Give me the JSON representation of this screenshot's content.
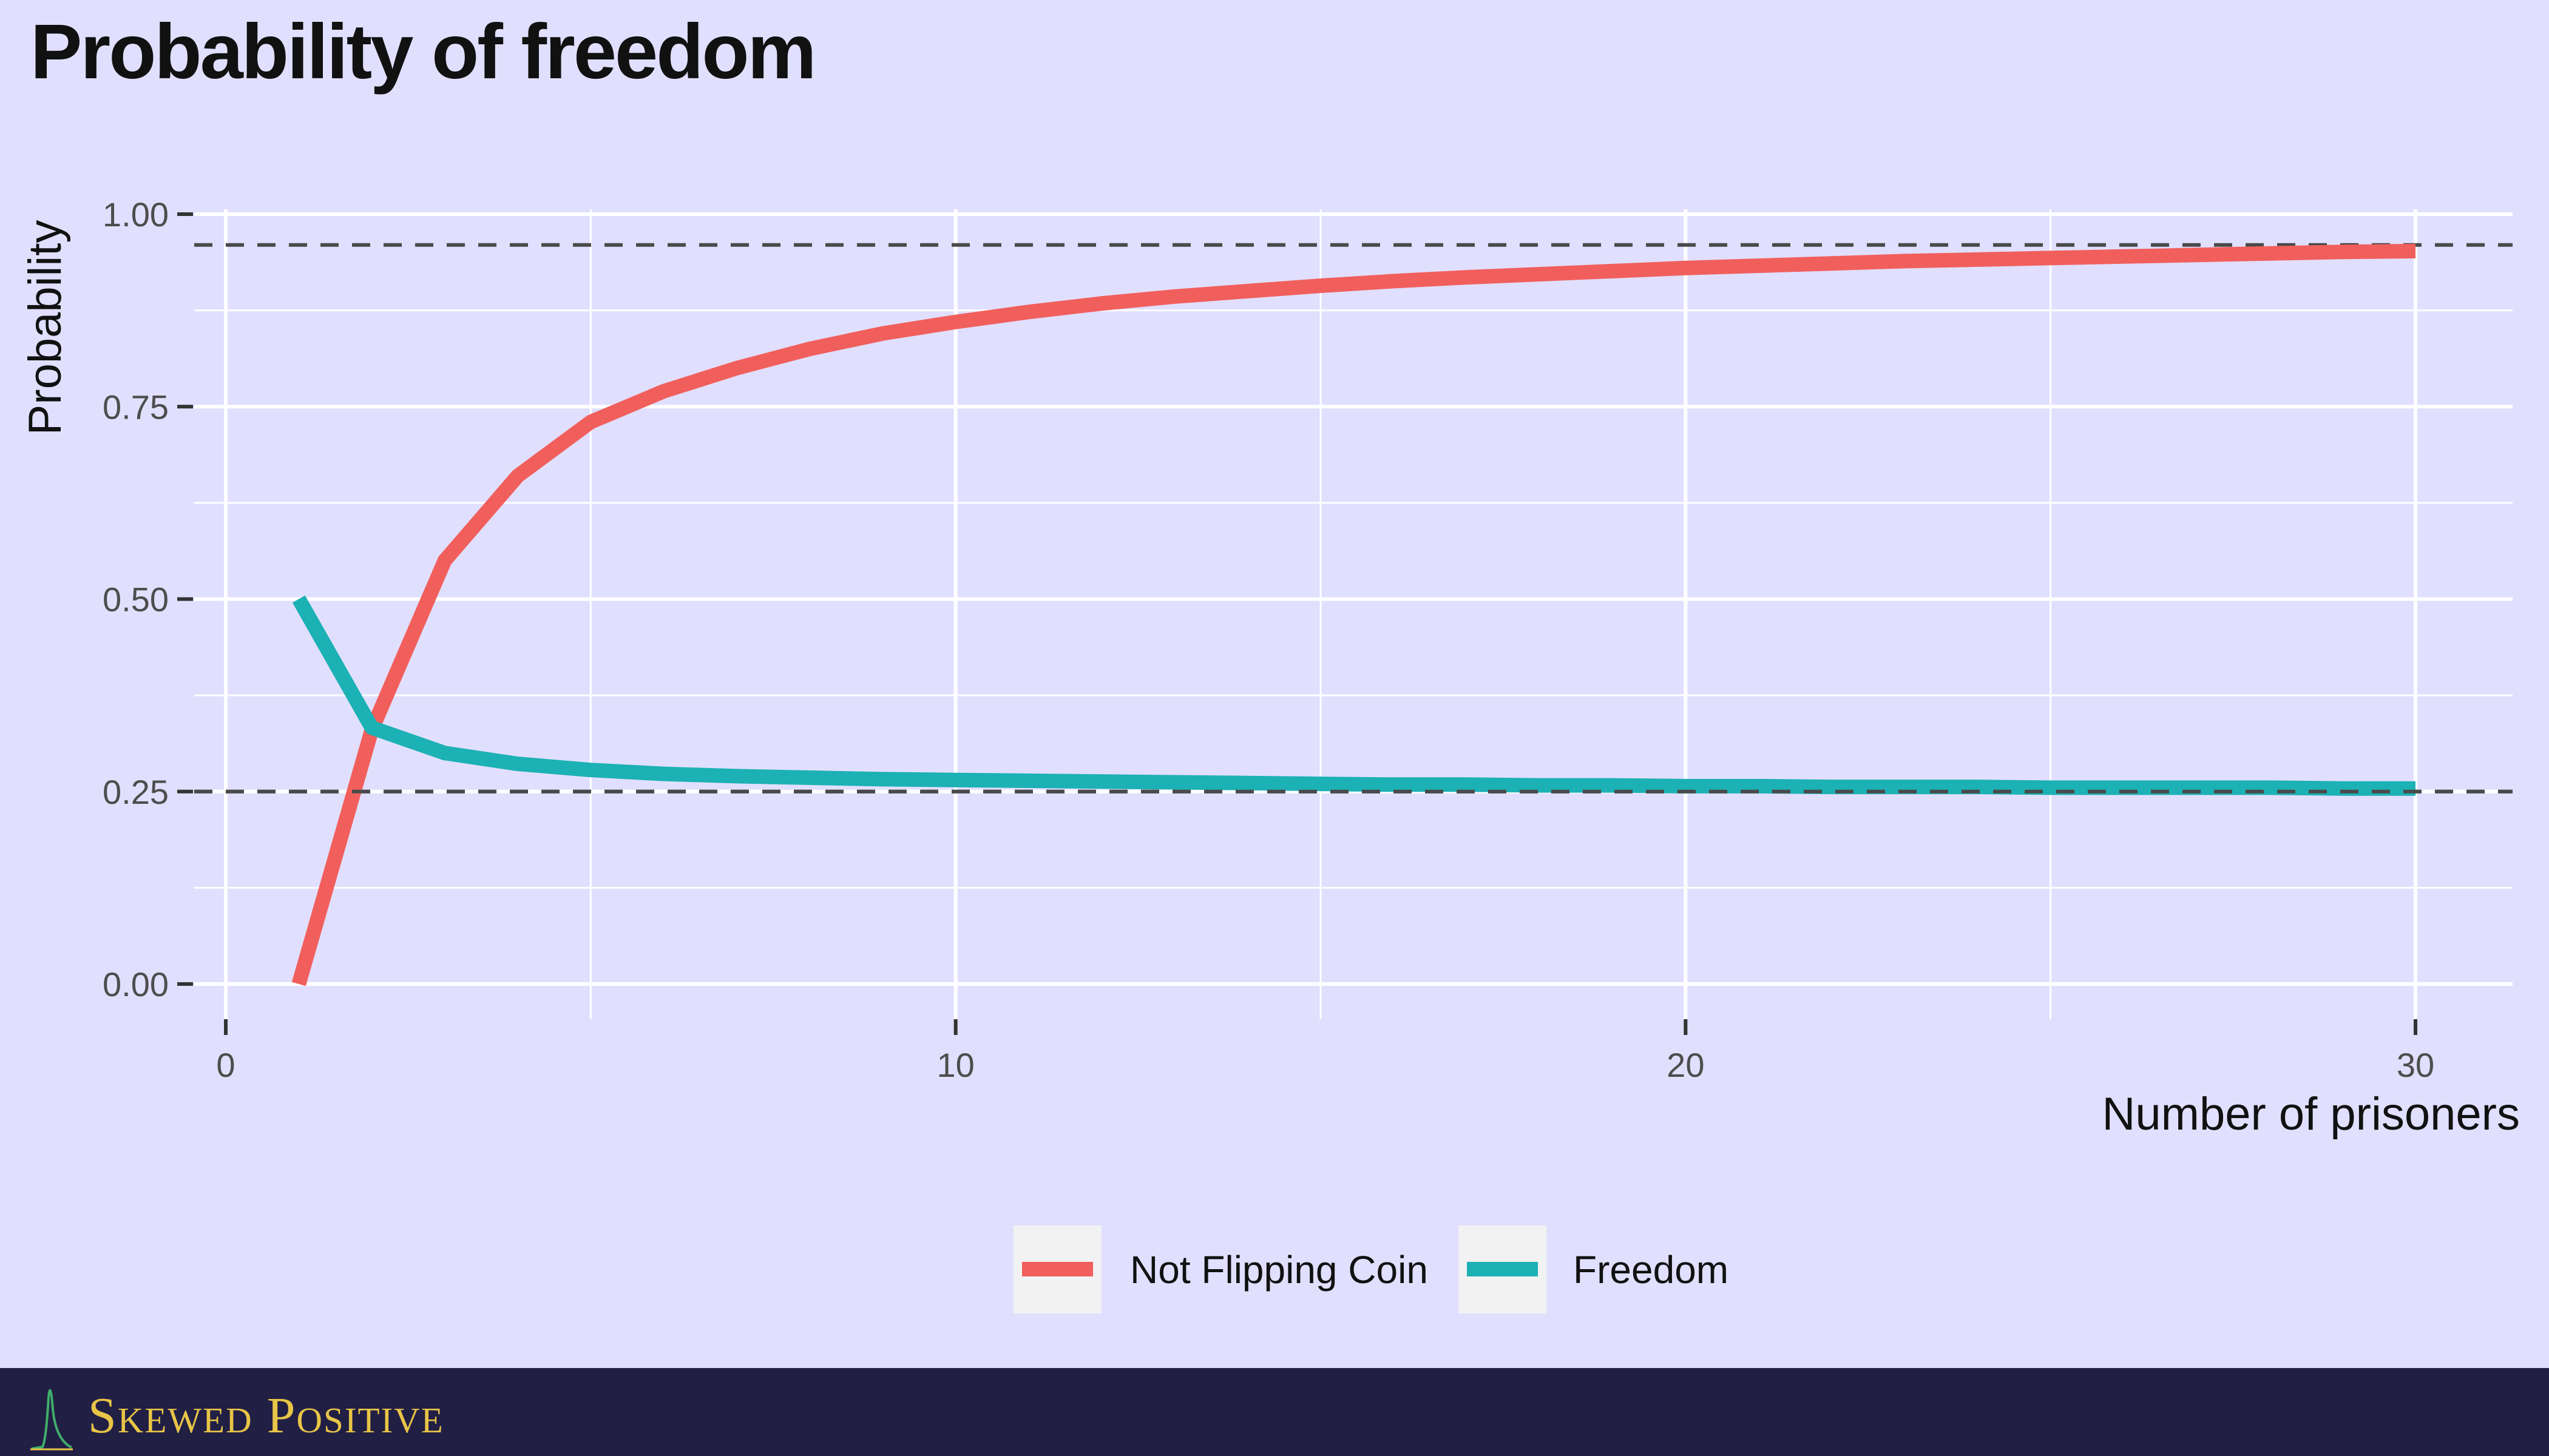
{
  "chart_data": {
    "type": "line",
    "title": "Probability of freedom",
    "xlabel": "Number of prisoners",
    "ylabel": "Probability",
    "xlim": [
      0,
      30
    ],
    "ylim": [
      0,
      1.0
    ],
    "x_ticks": [
      0,
      10,
      20,
      30
    ],
    "x_tick_labels": [
      "0",
      "10",
      "20",
      "30"
    ],
    "y_ticks": [
      0,
      0.25,
      0.5,
      0.75,
      1.0
    ],
    "y_tick_labels": [
      "0.00",
      "0.25",
      "0.50",
      "0.75",
      "1.00"
    ],
    "grid": true,
    "legend_position": "bottom",
    "hlines": [
      0.96,
      0.25
    ],
    "x": [
      1,
      2,
      3,
      4,
      5,
      6,
      7,
      8,
      9,
      10,
      11,
      12,
      13,
      14,
      15,
      16,
      17,
      18,
      19,
      20,
      21,
      22,
      23,
      24,
      25,
      26,
      27,
      28,
      29,
      30
    ],
    "series": [
      {
        "name": "Not Flipping Coin",
        "color": "#f15f5c",
        "values": [
          0.0,
          0.33,
          0.55,
          0.66,
          0.73,
          0.77,
          0.8,
          0.825,
          0.845,
          0.86,
          0.873,
          0.884,
          0.893,
          0.9,
          0.907,
          0.913,
          0.918,
          0.922,
          0.926,
          0.93,
          0.933,
          0.936,
          0.939,
          0.941,
          0.943,
          0.945,
          0.947,
          0.949,
          0.951,
          0.952
        ]
      },
      {
        "name": "Freedom",
        "color": "#1cb1b4",
        "values": [
          0.5,
          0.333,
          0.3,
          0.286,
          0.278,
          0.273,
          0.27,
          0.268,
          0.266,
          0.265,
          0.264,
          0.263,
          0.262,
          0.261,
          0.26,
          0.259,
          0.259,
          0.258,
          0.258,
          0.257,
          0.257,
          0.256,
          0.256,
          0.256,
          0.255,
          0.255,
          0.255,
          0.255,
          0.254,
          0.254
        ]
      }
    ]
  },
  "footer": {
    "brand": "Skewed Positive",
    "background": "#221f44",
    "text_color": "#e8c547"
  }
}
